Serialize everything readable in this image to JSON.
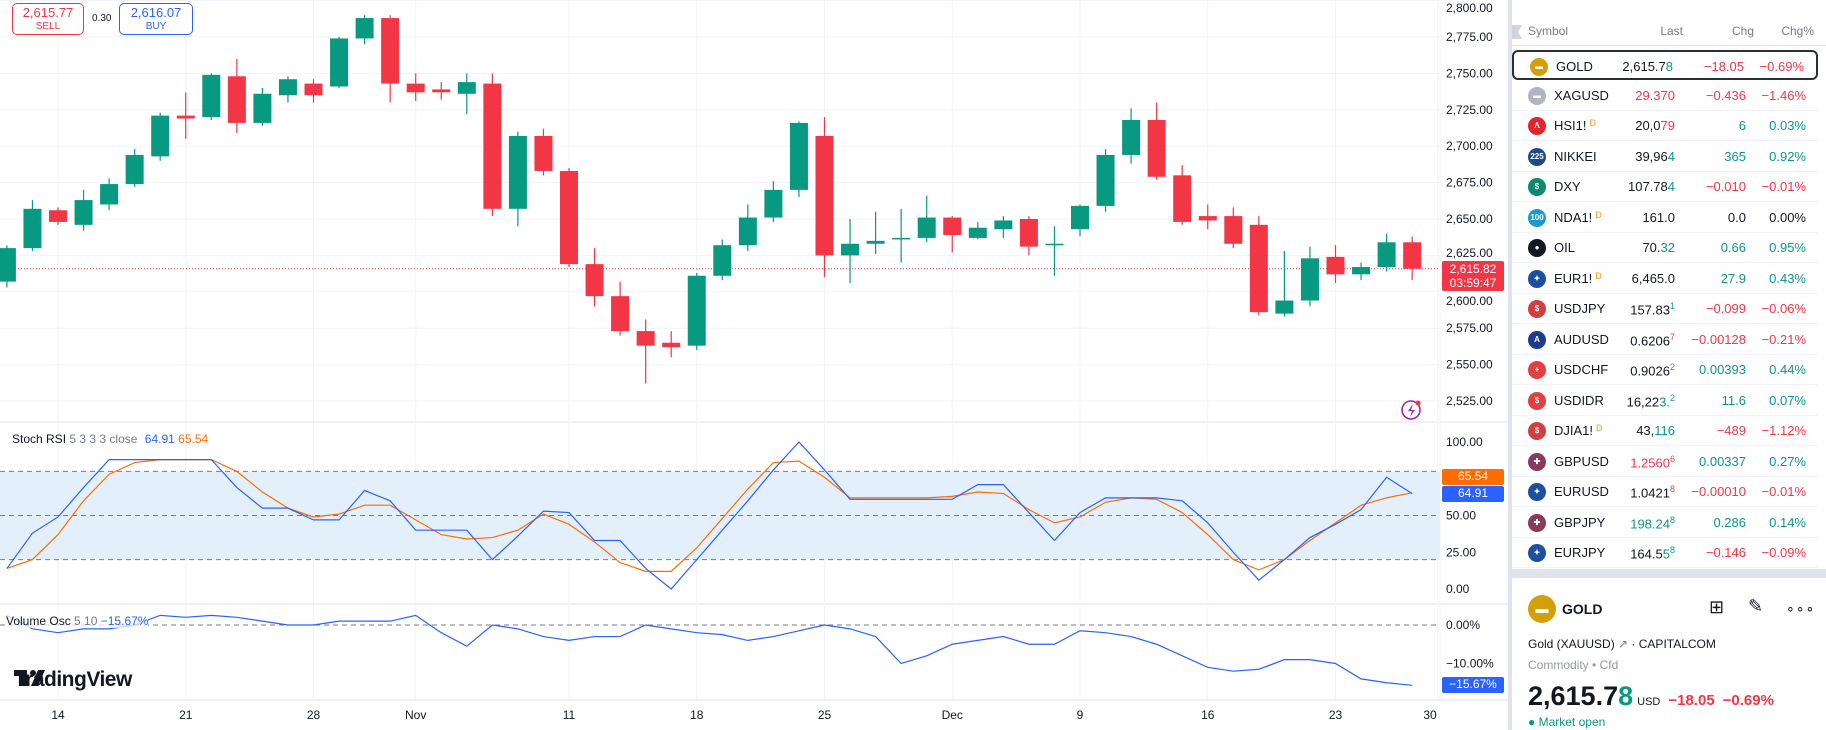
{
  "colors": {
    "up": "#089981",
    "down": "#f23645",
    "k": "#2962ff",
    "d": "#ff6d00",
    "band": "#e3f0fc"
  },
  "trade": {
    "sell_price": "2,615.77",
    "sell_label": "SELL",
    "spread": "0.30",
    "buy_price": "2,616.07",
    "buy_label": "BUY"
  },
  "price_axis": [
    "2,800.00",
    "2,775.00",
    "2,750.00",
    "2,725.00",
    "2,700.00",
    "2,675.00",
    "2,650.00",
    "2,625.00",
    "2,600.00",
    "2,575.00",
    "2,550.00",
    "2,525.00"
  ],
  "price_tag": {
    "price": "2,615.82",
    "countdown": "03:59:47"
  },
  "stoch": {
    "name": "Stoch RSI",
    "params": "5 3 3 3 close",
    "k": "64.91",
    "d": "65.54",
    "axis": [
      "100.00",
      "50.00",
      "25.00",
      "0.00"
    ]
  },
  "volosc": {
    "name": "Volume Osc",
    "params": "5 10",
    "value": "−15.67%",
    "axis": [
      "0.00%",
      "−10.00%"
    ],
    "tag": "−15.67%"
  },
  "time_axis": [
    "14",
    "21",
    "28",
    "Nov",
    "11",
    "18",
    "25",
    "Dec",
    "9",
    "16",
    "23",
    "30"
  ],
  "logo": "TradingView",
  "chart_data": {
    "type": "candlestick",
    "dates": [
      "Oct 10",
      "Oct 11",
      "Oct 14",
      "Oct 15",
      "Oct 16",
      "Oct 17",
      "Oct 18",
      "Oct 21",
      "Oct 22",
      "Oct 23",
      "Oct 24",
      "Oct 25",
      "Oct 28",
      "Oct 29",
      "Oct 30",
      "Oct 31",
      "Nov 1",
      "Nov 4",
      "Nov 5",
      "Nov 6",
      "Nov 7",
      "Nov 8",
      "Nov 11",
      "Nov 12",
      "Nov 13",
      "Nov 14",
      "Nov 15",
      "Nov 18",
      "Nov 19",
      "Nov 20",
      "Nov 21",
      "Nov 22",
      "Nov 25",
      "Nov 26",
      "Nov 27",
      "Nov 28",
      "Nov 29",
      "Dec 2",
      "Dec 3",
      "Dec 4",
      "Dec 5",
      "Dec 6",
      "Dec 9",
      "Dec 10",
      "Dec 11",
      "Dec 12",
      "Dec 13",
      "Dec 16",
      "Dec 17",
      "Dec 18",
      "Dec 19",
      "Dec 20",
      "Dec 23",
      "Dec 24",
      "Dec 26",
      "Dec 27"
    ],
    "ohlc": [
      [
        2607,
        2632,
        2603,
        2630
      ],
      [
        2630,
        2663,
        2628,
        2657
      ],
      [
        2656,
        2658,
        2646,
        2648
      ],
      [
        2646,
        2670,
        2642,
        2663
      ],
      [
        2660,
        2678,
        2656,
        2674
      ],
      [
        2674,
        2698,
        2672,
        2694
      ],
      [
        2693,
        2723,
        2690,
        2721
      ],
      [
        2721,
        2737,
        2705,
        2719
      ],
      [
        2720,
        2750,
        2718,
        2749
      ],
      [
        2748,
        2760,
        2709,
        2716
      ],
      [
        2716,
        2740,
        2714,
        2736
      ],
      [
        2735,
        2748,
        2730,
        2746
      ],
      [
        2743,
        2746,
        2730,
        2735
      ],
      [
        2741,
        2775,
        2740,
        2774
      ],
      [
        2774,
        2790,
        2770,
        2788
      ],
      [
        2788,
        2790,
        2730,
        2743
      ],
      [
        2743,
        2750,
        2731,
        2737
      ],
      [
        2739,
        2744,
        2732,
        2737
      ],
      [
        2736,
        2750,
        2722,
        2744
      ],
      [
        2743,
        2750,
        2652,
        2657
      ],
      [
        2657,
        2710,
        2645,
        2707
      ],
      [
        2707,
        2712,
        2680,
        2683
      ],
      [
        2683,
        2685,
        2617,
        2619
      ],
      [
        2619,
        2630,
        2590,
        2597
      ],
      [
        2597,
        2607,
        2570,
        2573
      ],
      [
        2573,
        2581,
        2537,
        2563
      ],
      [
        2565,
        2573,
        2555,
        2562
      ],
      [
        2563,
        2613,
        2560,
        2611
      ],
      [
        2611,
        2636,
        2608,
        2632
      ],
      [
        2632,
        2660,
        2628,
        2651
      ],
      [
        2651,
        2676,
        2648,
        2670
      ],
      [
        2670,
        2717,
        2665,
        2716
      ],
      [
        2707,
        2720,
        2610,
        2625
      ],
      [
        2625,
        2650,
        2606,
        2633
      ],
      [
        2633,
        2655,
        2626,
        2635
      ],
      [
        2636,
        2657,
        2620,
        2637
      ],
      [
        2637,
        2666,
        2634,
        2651
      ],
      [
        2651,
        2652,
        2627,
        2639
      ],
      [
        2637,
        2648,
        2636,
        2644
      ],
      [
        2643,
        2652,
        2637,
        2649
      ],
      [
        2650,
        2652,
        2625,
        2631
      ],
      [
        2632,
        2645,
        2611,
        2633
      ],
      [
        2643,
        2660,
        2638,
        2659
      ],
      [
        2659,
        2698,
        2655,
        2694
      ],
      [
        2694,
        2726,
        2688,
        2718
      ],
      [
        2718,
        2730,
        2677,
        2679
      ],
      [
        2680,
        2687,
        2646,
        2648
      ],
      [
        2652,
        2660,
        2643,
        2649
      ],
      [
        2652,
        2658,
        2630,
        2633
      ],
      [
        2646,
        2652,
        2584,
        2586
      ],
      [
        2585,
        2628,
        2583,
        2594
      ],
      [
        2594,
        2631,
        2590,
        2623
      ],
      [
        2624,
        2632,
        2606,
        2612
      ],
      [
        2612,
        2620,
        2608,
        2617
      ],
      [
        2617,
        2640,
        2614,
        2634
      ],
      [
        2634,
        2638,
        2608,
        2615.82
      ]
    ],
    "ylim": [
      2520,
      2800
    ],
    "stoch_k": [
      14,
      38,
      49,
      69,
      88,
      88,
      88,
      88,
      88,
      69,
      55,
      55,
      47,
      47,
      67,
      60,
      40,
      40,
      40,
      20,
      36,
      53,
      52,
      33,
      33,
      14,
      0,
      20,
      40,
      60,
      81,
      100,
      81,
      61,
      61,
      61,
      61,
      61,
      71,
      71,
      52,
      33,
      52,
      62,
      62,
      62,
      60,
      45,
      25,
      6,
      20,
      35,
      44,
      54,
      76,
      64.91
    ],
    "stoch_d": [
      14,
      20,
      37,
      60,
      78,
      86,
      88,
      88,
      88,
      80,
      66,
      55,
      49,
      51,
      57,
      57,
      47,
      37,
      34,
      35,
      40,
      51,
      44,
      32,
      18,
      12,
      12,
      28,
      48,
      68,
      86,
      87,
      76,
      62,
      62,
      62,
      62,
      63,
      66,
      65,
      54,
      45,
      49,
      59,
      62,
      61,
      52,
      37,
      20,
      13,
      20,
      33,
      45,
      57,
      62,
      65.54
    ],
    "stoch_bands": [
      20,
      80
    ],
    "volume_osc": [
      2.5,
      -1,
      -2,
      -1,
      -1,
      0,
      2.5,
      2,
      2.5,
      2,
      1,
      0,
      0,
      1,
      1,
      1,
      2.5,
      -2,
      -5.5,
      0,
      -1,
      -3,
      -4,
      -3,
      -3,
      0,
      -1,
      -2,
      -2.5,
      -4,
      -3,
      -1.5,
      0,
      -1,
      -3,
      -10,
      -8,
      -5,
      -4,
      -3,
      -5,
      -5,
      -1.5,
      -2,
      -3,
      -5,
      -8,
      -11,
      -12,
      -11.5,
      -9,
      -9,
      -10,
      -14,
      -15,
      -15.67
    ]
  },
  "watchlist": {
    "headers": {
      "symbol": "Symbol",
      "last": "Last",
      "chg": "Chg",
      "pct": "Chg%"
    },
    "rows": [
      {
        "sym": "GOLD",
        "icon": "gold-bar-icon",
        "ic": "#d4a00a",
        "g": "▬",
        "last": "2,615.7",
        "hl": "8",
        "hlc": "up",
        "chg": "−18.05",
        "pct": "−0.69%",
        "c": "down",
        "sel": true
      },
      {
        "sym": "XAGUSD",
        "icon": "silver-bar-icon",
        "ic": "#b2b5be",
        "g": "▬",
        "last": "29.370",
        "lc": "down",
        "chg": "−0.436",
        "pct": "−1.46%",
        "c": "down"
      },
      {
        "sym": "HSI1!",
        "d": "D",
        "icon": "hsi-icon",
        "ic": "#e5242c",
        "g": "Λ",
        "last": "20,0",
        "hl": "79",
        "hlc": "down",
        "chg": "6",
        "pct": "0.03%",
        "c": "up"
      },
      {
        "sym": "NIKKEI",
        "icon": "nikkei-225-icon",
        "ic": "#1e4b85",
        "g": "225",
        "last": "39,96",
        "hl": "4",
        "hlc": "up",
        "chg": "365",
        "pct": "0.92%",
        "c": "up"
      },
      {
        "sym": "DXY",
        "icon": "dollar-icon",
        "ic": "#0c8a6a",
        "g": "$",
        "last": "107.78",
        "hl": "4",
        "hlc": "up",
        "chg": "−0.010",
        "pct": "−0.01%",
        "c": "down"
      },
      {
        "sym": "NDA1!",
        "d": "D",
        "icon": "nasdaq-100-icon",
        "ic": "#1a9bd0",
        "g": "100",
        "last": "161.0",
        "chg": "0.0",
        "pct": "0.00%",
        "c": "flat"
      },
      {
        "sym": "OIL",
        "icon": "oil-drop-icon",
        "ic": "#131722",
        "g": "●",
        "last": "70.",
        "hl": "32",
        "hlc": "up",
        "chg": "0.66",
        "pct": "0.95%",
        "c": "up"
      },
      {
        "sym": "EUR1!",
        "d": "D",
        "icon": "eu-flag-icon",
        "ic": "#1d4fa0",
        "g": "✦",
        "last": "6,465.0",
        "chg": "27.9",
        "pct": "0.43%",
        "c": "up"
      },
      {
        "sym": "USDJPY",
        "icon": "us-jp-flag-icon",
        "ic": "#d04040",
        "g": "$",
        "last": "157.83",
        "sup": "1",
        "supc": "up",
        "chg": "−0.099",
        "pct": "−0.06%",
        "c": "down"
      },
      {
        "sym": "AUDUSD",
        "icon": "au-us-flag-icon",
        "ic": "#1d3c8a",
        "g": "A",
        "last": "0.6206",
        "sup": "7",
        "supc": "down",
        "chg": "−0.00128",
        "pct": "−0.21%",
        "c": "down"
      },
      {
        "sym": "USDCHF",
        "icon": "us-ch-flag-icon",
        "ic": "#e04040",
        "g": "+",
        "last": "0.9026",
        "sup": "2",
        "supc": "down",
        "chg": "0.00393",
        "pct": "0.44%",
        "c": "up"
      },
      {
        "sym": "USDIDR",
        "icon": "us-id-flag-icon",
        "ic": "#e04040",
        "g": "$",
        "last": "16,22",
        "hl": "3.",
        "hlc": "up",
        "sup": "2",
        "supc": "up",
        "chg": "11.6",
        "pct": "0.07%",
        "c": "up"
      },
      {
        "sym": "DJIA1!",
        "d": "D",
        "icon": "us-flag-icon",
        "ic": "#d04040",
        "g": "$",
        "last": "43,",
        "hl": "116",
        "hlc": "up",
        "chg": "−489",
        "pct": "−1.12%",
        "c": "down"
      },
      {
        "sym": "GBPUSD",
        "icon": "gb-us-flag-icon",
        "ic": "#8a3a5a",
        "g": "✚",
        "last": "1.2560",
        "lc": "down",
        "sup": "6",
        "supc": "down",
        "chg": "0.00337",
        "pct": "0.27%",
        "c": "up"
      },
      {
        "sym": "EURUSD",
        "icon": "eu-us-flag-icon",
        "ic": "#1d4fa0",
        "g": "✦",
        "last": "1.0421",
        "sup": "8",
        "supc": "down",
        "chg": "−0.00010",
        "pct": "−0.01%",
        "c": "down"
      },
      {
        "sym": "GBPJPY",
        "icon": "gb-jp-flag-icon",
        "ic": "#8a3a5a",
        "g": "✚",
        "last": "198.24",
        "lc": "up",
        "sup": "8",
        "supc": "up",
        "chg": "0.286",
        "pct": "0.14%",
        "c": "up"
      },
      {
        "sym": "EURJPY",
        "icon": "eu-jp-flag-icon",
        "ic": "#1d4fa0",
        "g": "✦",
        "last": "164.5",
        "hl": "5",
        "hlc": "up",
        "sup": "8",
        "supc": "up",
        "chg": "−0.146",
        "pct": "−0.09%",
        "c": "down"
      }
    ]
  },
  "details": {
    "symbol": "GOLD",
    "name": "Gold (XAUUSD)",
    "exchange": "CAPITALCOM",
    "type": "Commodity",
    "subtype": "Cfd",
    "price": "2,615.7",
    "price_hl": "8",
    "currency": "USD",
    "chg": "−18.05",
    "pct": "−0.69%",
    "status": "Market open"
  }
}
